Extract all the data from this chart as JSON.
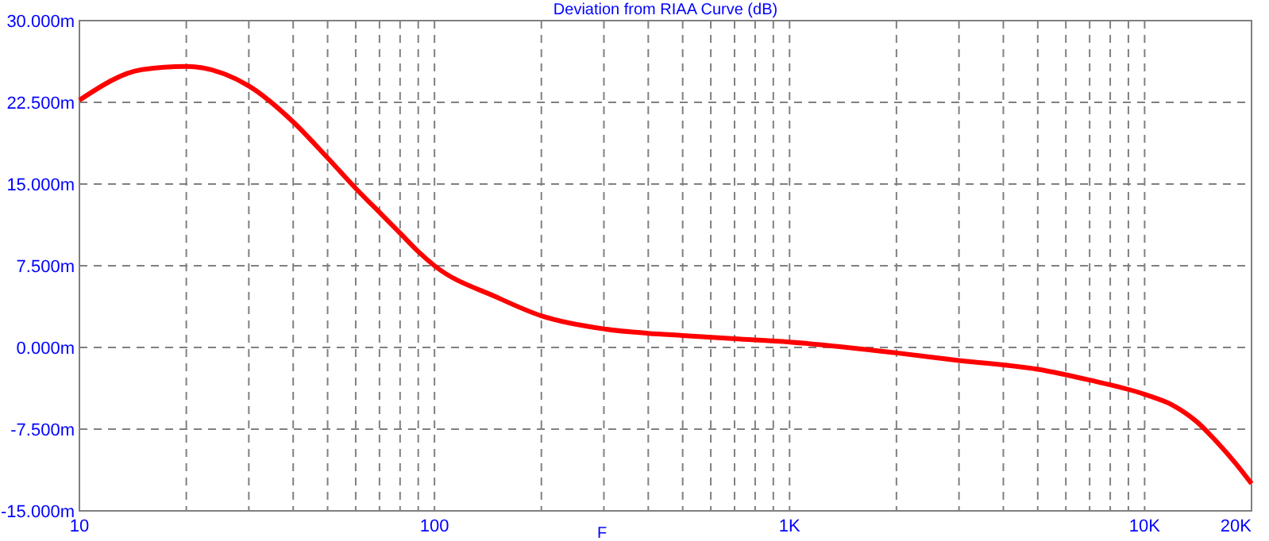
{
  "chart_data": {
    "type": "line",
    "title": "Deviation from RIAA Curve (dB)",
    "xlabel": "F",
    "log": "x",
    "grid": true,
    "line_style": "solid",
    "marker": "none",
    "xlim": [
      10,
      20000
    ],
    "ylim": [
      -15,
      30
    ],
    "xticks": [
      10,
      {
        "value": 20,
        "label": null
      },
      {
        "value": 30,
        "label": null
      },
      {
        "value": 40,
        "label": null
      },
      {
        "value": 50,
        "label": null
      },
      {
        "value": 60,
        "label": null
      },
      {
        "value": 70,
        "label": null
      },
      {
        "value": 80,
        "label": null
      },
      {
        "value": 90,
        "label": null
      },
      100,
      {
        "value": 200,
        "label": null
      },
      {
        "value": 300,
        "label": null
      },
      {
        "value": 400,
        "label": null
      },
      {
        "value": 500,
        "label": null
      },
      {
        "value": 600,
        "label": null
      },
      {
        "value": 700,
        "label": null
      },
      {
        "value": 800,
        "label": null
      },
      {
        "value": 900,
        "label": null
      },
      {
        "value": 1000,
        "label": "1K"
      },
      {
        "value": 2000,
        "label": null
      },
      {
        "value": 3000,
        "label": null
      },
      {
        "value": 4000,
        "label": null
      },
      {
        "value": 5000,
        "label": null
      },
      {
        "value": 6000,
        "label": null
      },
      {
        "value": 7000,
        "label": null
      },
      {
        "value": 8000,
        "label": null
      },
      {
        "value": 9000,
        "label": null
      },
      {
        "value": 10000,
        "label": "10K"
      },
      {
        "value": 20000,
        "label": "20K"
      }
    ],
    "yticks": [
      {
        "value": -15,
        "label": "-15.000m"
      },
      {
        "value": -7.5,
        "label": "-7.500m"
      },
      {
        "value": 0,
        "label": "0.000m"
      },
      {
        "value": 7.5,
        "label": "7.500m"
      },
      {
        "value": 15,
        "label": "15.000m"
      },
      {
        "value": 22.5,
        "label": "22.500m"
      },
      {
        "value": 30,
        "label": "30.000m"
      }
    ],
    "series": [
      {
        "color": "#ff0000",
        "x": [
          10,
          15,
          20,
          30,
          40,
          50,
          60,
          70,
          80,
          90,
          100,
          150,
          200,
          300,
          400,
          500,
          700,
          1000,
          2000,
          3000,
          5000,
          7000,
          10000,
          12000,
          14000,
          16000,
          18000,
          20000
        ],
        "values": [
          22.7,
          25.5,
          25.8,
          24.0,
          20.7,
          17.4,
          14.6,
          12.4,
          10.5,
          8.8,
          7.5,
          4.6,
          2.9,
          1.7,
          1.3,
          1.1,
          0.8,
          0.5,
          -0.5,
          -1.2,
          -2.0,
          -3.0,
          -4.3,
          -5.3,
          -6.8,
          -8.7,
          -10.6,
          -12.5
        ]
      }
    ]
  }
}
